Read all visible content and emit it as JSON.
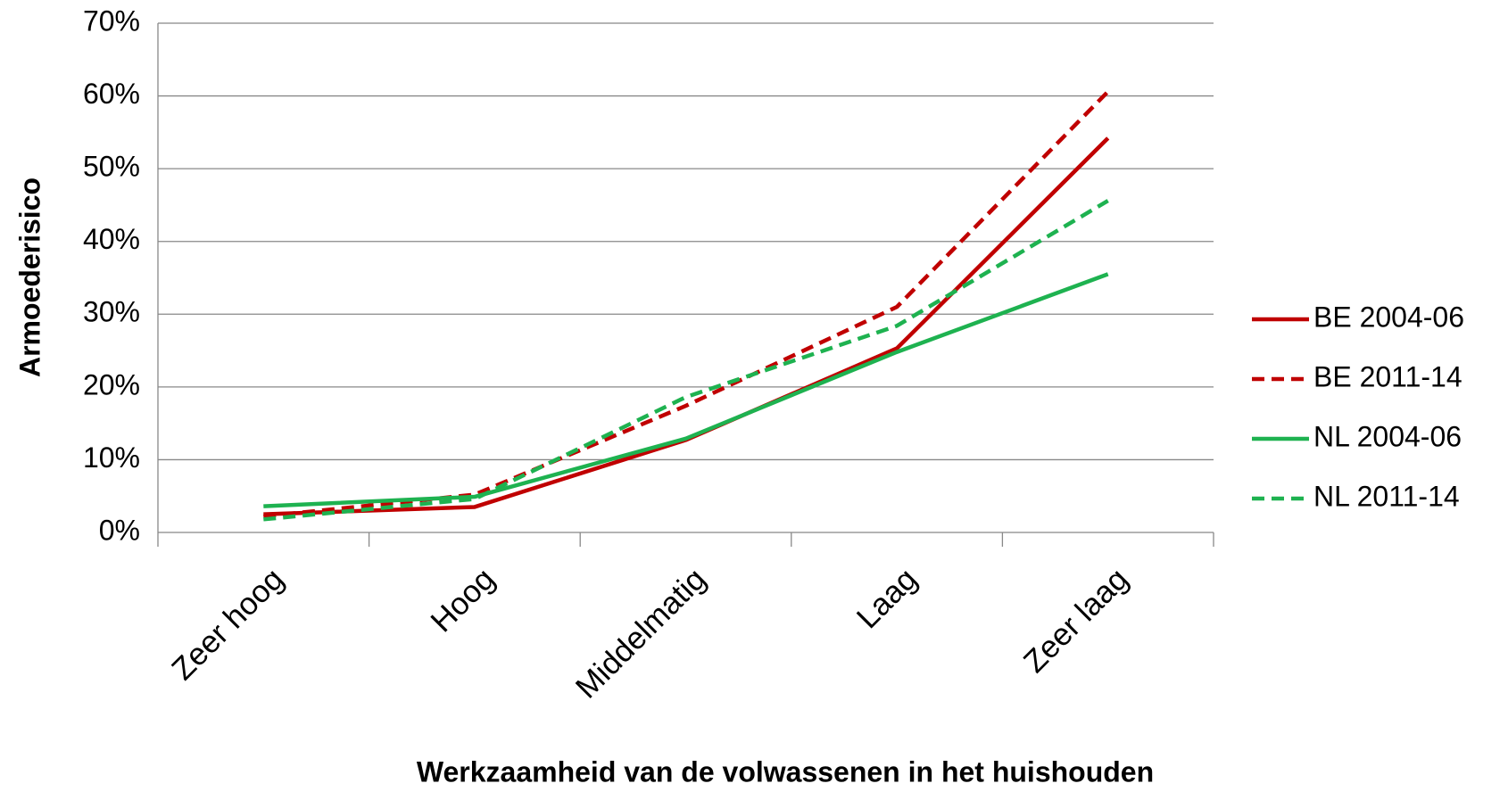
{
  "chart_data": {
    "type": "line",
    "x_label": "Werkzaamheid van de volwassenen in het huishouden",
    "y_label": "Armoederisico",
    "categories": [
      "Zeer hoog",
      "Hoog",
      "Middelmatig",
      "Laag",
      "Zeer laag"
    ],
    "series": [
      {
        "name": "BE 2004-06",
        "color": "#c00000",
        "dash": false,
        "values": [
          2.5,
          3.5,
          12.7,
          25.3,
          54.2
        ]
      },
      {
        "name": "BE 2011-14",
        "color": "#c00000",
        "dash": true,
        "values": [
          2.2,
          5.2,
          17.4,
          31.0,
          60.6
        ]
      },
      {
        "name": "NL 2004-06",
        "color": "#1eb250",
        "dash": false,
        "values": [
          3.6,
          4.9,
          12.9,
          24.8,
          35.5
        ]
      },
      {
        "name": "NL 2011-14",
        "color": "#1eb250",
        "dash": true,
        "values": [
          1.8,
          4.6,
          18.6,
          28.4,
          45.6
        ]
      }
    ],
    "ylim": [
      0,
      70
    ],
    "yticks": [
      {
        "value": 0,
        "label": "0%"
      },
      {
        "value": 10,
        "label": "10%"
      },
      {
        "value": 20,
        "label": "20%"
      },
      {
        "value": 30,
        "label": "30%"
      },
      {
        "value": 40,
        "label": "40%"
      },
      {
        "value": 50,
        "label": "50%"
      },
      {
        "value": 60,
        "label": "60%"
      },
      {
        "value": 70,
        "label": "70%"
      }
    ],
    "grid": true,
    "legend": "right"
  }
}
